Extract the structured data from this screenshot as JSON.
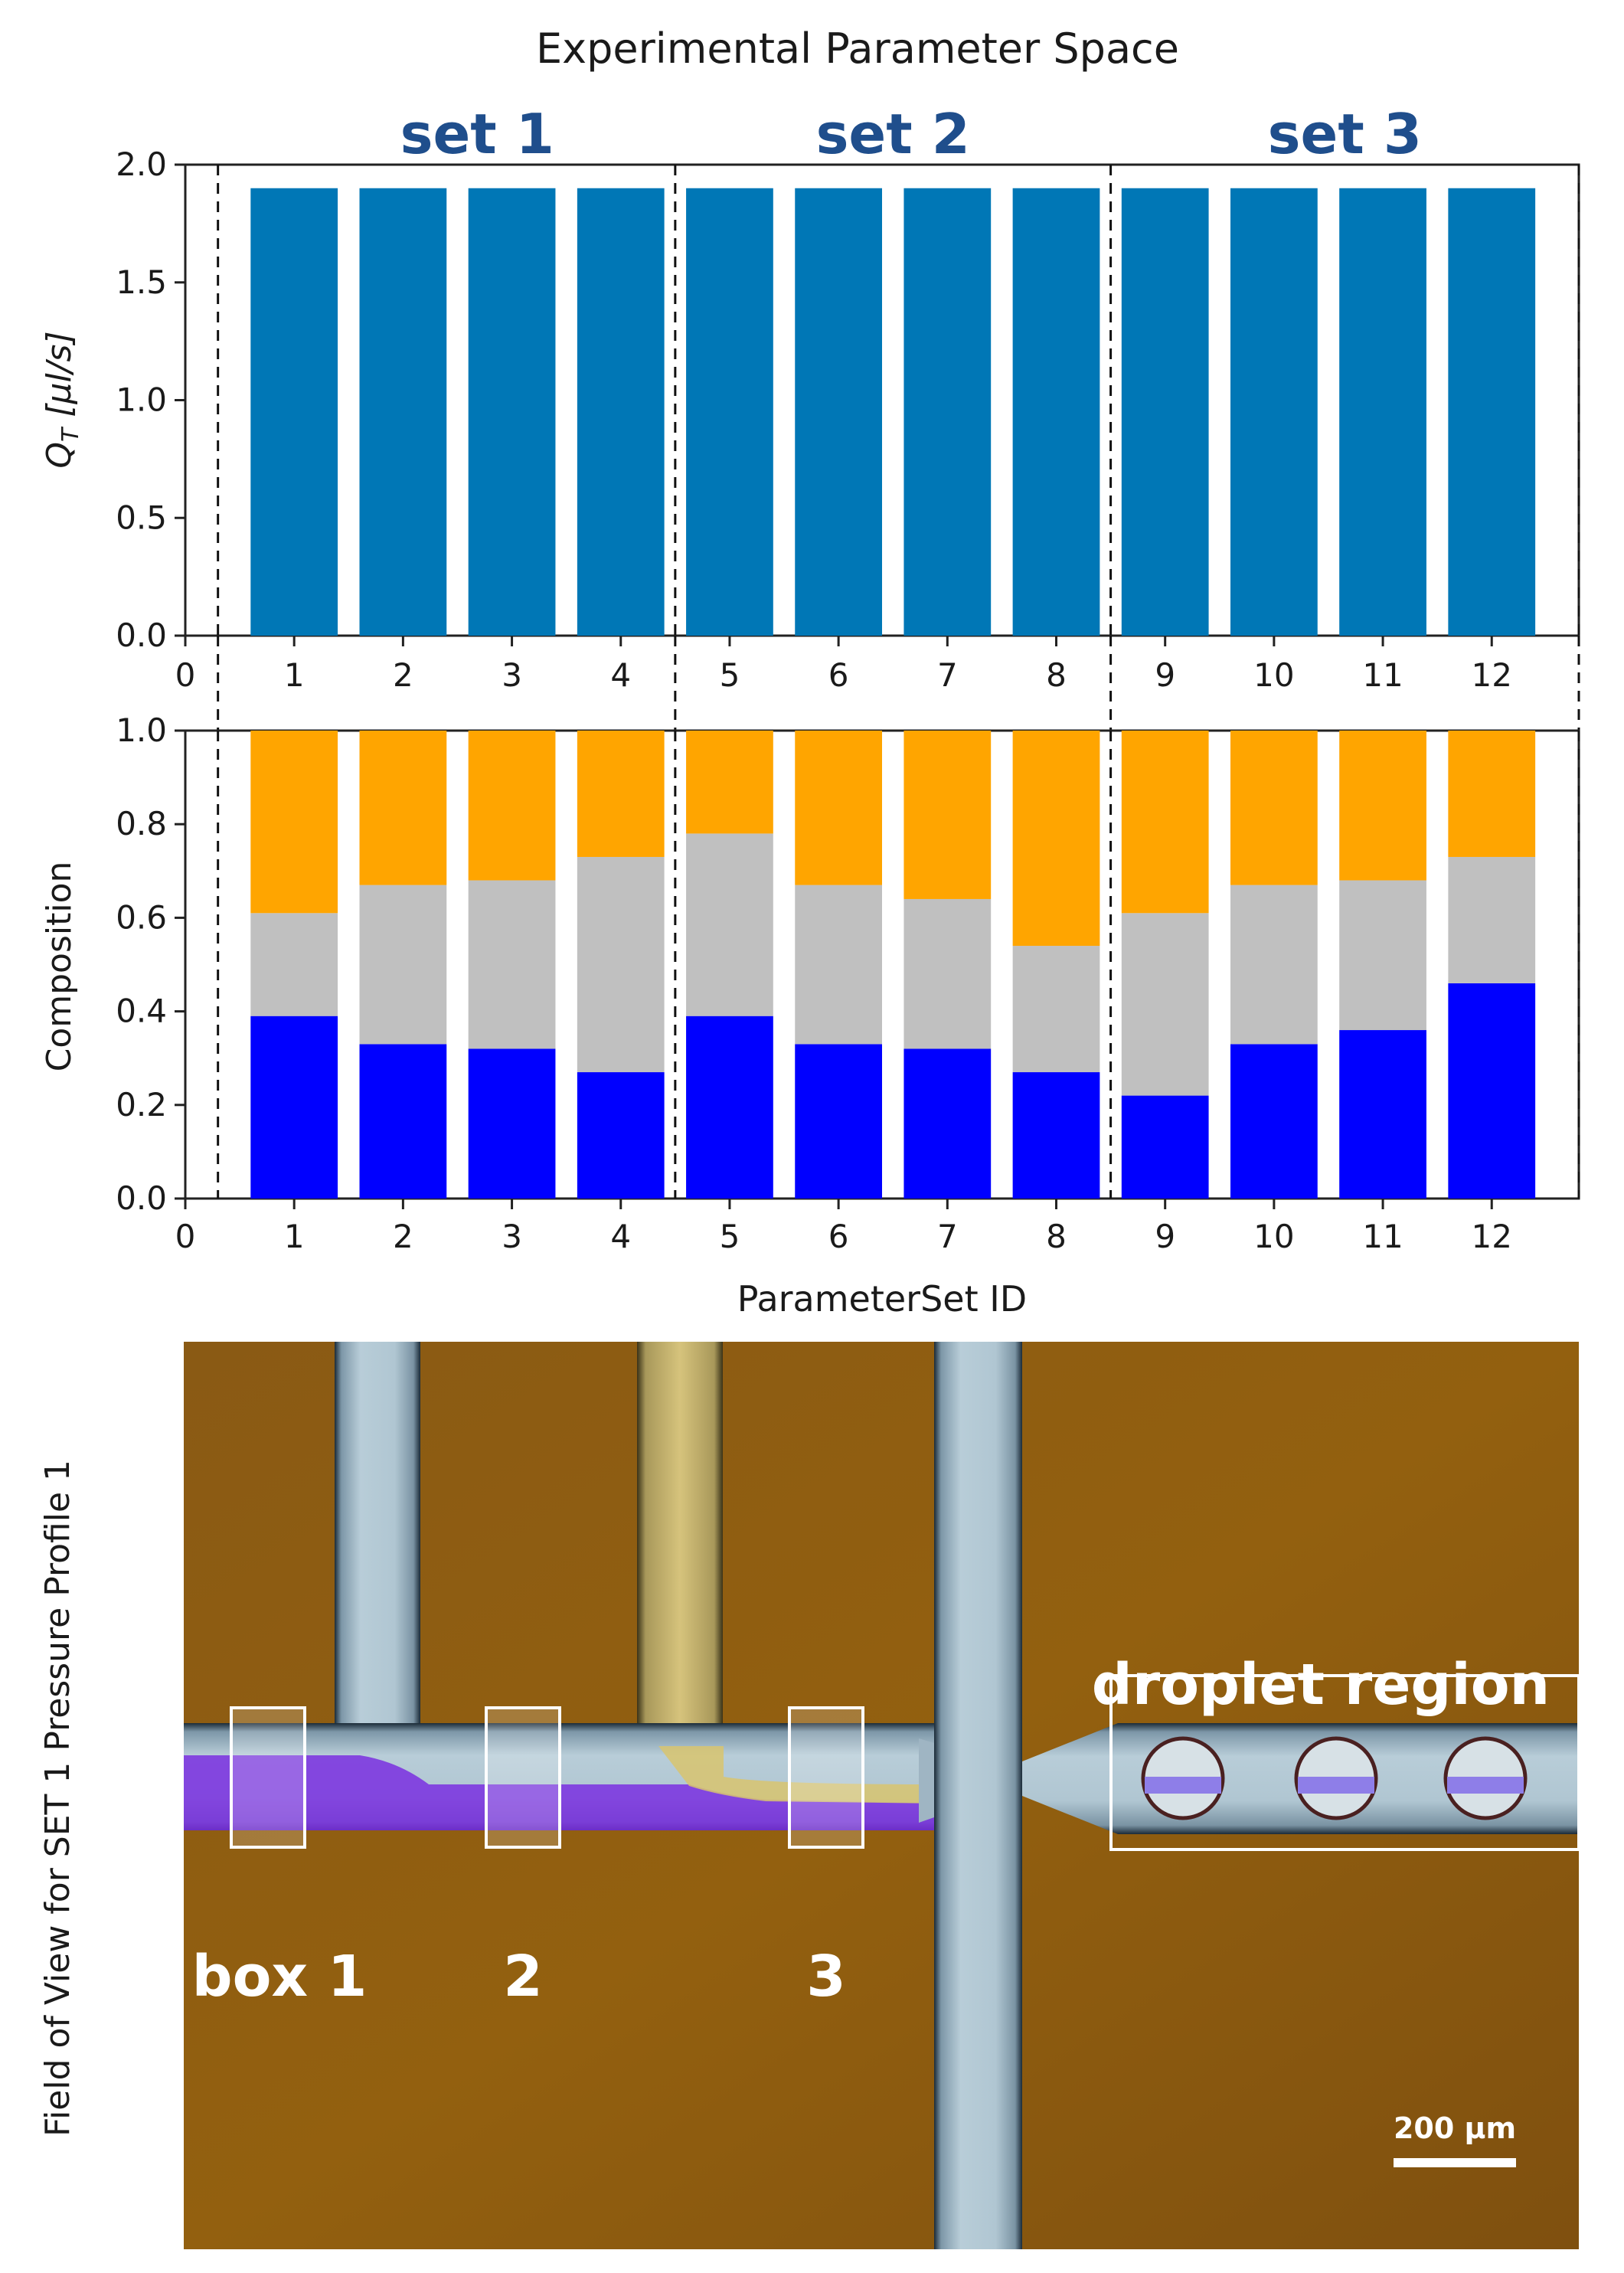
{
  "chart_data": [
    {
      "type": "bar",
      "title": "Experimental Parameter Space",
      "ylabel": "Q_T [μl/s]",
      "ylabel_main": "Q",
      "ylabel_sub": "T",
      "ylabel_unit": " [μl/s]",
      "xlabel": "",
      "categories": [
        "1",
        "2",
        "3",
        "4",
        "5",
        "6",
        "7",
        "8",
        "9",
        "10",
        "11",
        "12"
      ],
      "values": [
        1.9,
        1.9,
        1.9,
        1.9,
        1.9,
        1.9,
        1.9,
        1.9,
        1.9,
        1.9,
        1.9,
        1.9
      ],
      "ylim": [
        0,
        2.0
      ],
      "xlim": [
        0,
        12.8
      ],
      "yticks": [
        "0.0",
        "0.5",
        "1.0",
        "1.5",
        "2.0"
      ],
      "xticks": [
        "0",
        "1",
        "2",
        "3",
        "4",
        "5",
        "6",
        "7",
        "8",
        "9",
        "10",
        "11",
        "12"
      ],
      "color": "#0077b6",
      "set_labels": [
        "set 1",
        "set 2",
        "set 3"
      ],
      "dividers": [
        0.3,
        4.5,
        8.5,
        12.8
      ]
    },
    {
      "type": "stacked-bar",
      "ylabel": "Composition",
      "xlabel": "ParameterSet ID",
      "categories": [
        "1",
        "2",
        "3",
        "4",
        "5",
        "6",
        "7",
        "8",
        "9",
        "10",
        "11",
        "12"
      ],
      "series": [
        {
          "name": "blue",
          "color": "#0000ff",
          "values": [
            0.39,
            0.33,
            0.32,
            0.27,
            0.39,
            0.33,
            0.32,
            0.27,
            0.22,
            0.33,
            0.36,
            0.46
          ]
        },
        {
          "name": "gray",
          "color": "#c0c0c0",
          "values": [
            0.22,
            0.34,
            0.36,
            0.46,
            0.39,
            0.34,
            0.32,
            0.27,
            0.39,
            0.34,
            0.32,
            0.27
          ]
        },
        {
          "name": "orange",
          "color": "#ffa500",
          "values": [
            0.39,
            0.33,
            0.32,
            0.27,
            0.22,
            0.33,
            0.36,
            0.46,
            0.39,
            0.33,
            0.32,
            0.27
          ]
        }
      ],
      "ylim": [
        0,
        1.0
      ],
      "xlim": [
        0,
        12.8
      ],
      "yticks": [
        "0.0",
        "0.2",
        "0.4",
        "0.6",
        "0.8",
        "1.0"
      ],
      "xticks": [
        "0",
        "1",
        "2",
        "3",
        "4",
        "5",
        "6",
        "7",
        "8",
        "9",
        "10",
        "11",
        "12"
      ],
      "dividers": [
        0.3,
        4.5,
        8.5,
        12.8
      ]
    }
  ],
  "micrograph": {
    "side_label": "Field of View for SET 1 Pressure Profile 1",
    "box_labels": [
      "box 1",
      "2",
      "3"
    ],
    "region_label": "droplet region",
    "scale_bar": "200 μm"
  }
}
